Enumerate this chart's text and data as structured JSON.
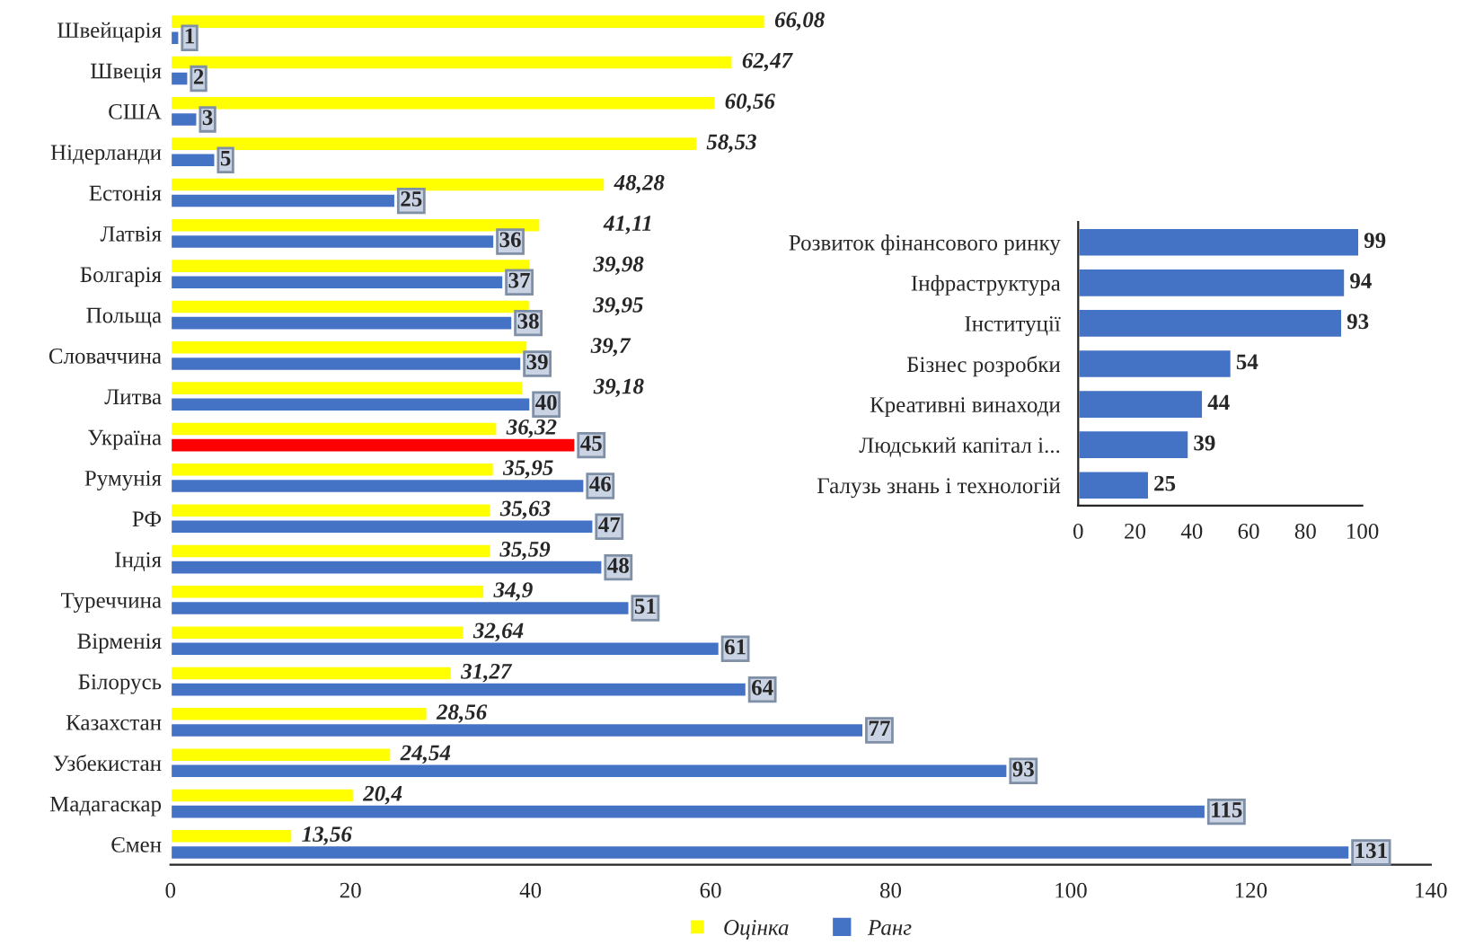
{
  "chart_data": [
    {
      "type": "bar",
      "orientation": "horizontal",
      "categories": [
        "Швейцарія",
        "Швеція",
        "США",
        "Нідерланди",
        "Естонія",
        "Латвія",
        "Болгарія",
        "Польща",
        "Словаччина",
        "Литва",
        "Україна",
        "Румунія",
        "РФ",
        "Індія",
        "Туреччина",
        "Вірменія",
        "Білорусь",
        "Казахстан",
        "Узбекистан",
        "Мадагаскар",
        "Ємен"
      ],
      "series": [
        {
          "name": "Оцінка",
          "color": "#ffff00",
          "values": [
            66.08,
            62.47,
            60.56,
            58.53,
            48.28,
            41.11,
            39.98,
            39.95,
            39.7,
            39.18,
            36.32,
            35.95,
            35.63,
            35.59,
            34.9,
            32.64,
            31.27,
            28.56,
            24.54,
            20.4,
            13.56
          ],
          "value_labels": [
            "66,08",
            "62,47",
            "60,56",
            "58,53",
            "48,28",
            "41,11",
            "39,98",
            "39,95",
            "39,7",
            "39,18",
            "36,32",
            "35,95",
            "35,63",
            "35,59",
            "34,9",
            "32,64",
            "31,27",
            "28,56",
            "24,54",
            "20,4",
            "13,56"
          ]
        },
        {
          "name": "Ранг",
          "color": "#4472c4",
          "colors": [
            "#4472c4",
            "#4472c4",
            "#4472c4",
            "#4472c4",
            "#4472c4",
            "#4472c4",
            "#4472c4",
            "#4472c4",
            "#4472c4",
            "#4472c4",
            "#ff0000",
            "#4472c4",
            "#4472c4",
            "#4472c4",
            "#4472c4",
            "#4472c4",
            "#4472c4",
            "#4472c4",
            "#4472c4",
            "#4472c4",
            "#4472c4"
          ],
          "values": [
            1,
            2,
            3,
            5,
            25,
            36,
            37,
            38,
            39,
            40,
            45,
            46,
            47,
            48,
            51,
            61,
            64,
            77,
            93,
            115,
            131
          ],
          "data_labels": true
        }
      ],
      "xlim": [
        0,
        140
      ],
      "xticks": [
        0,
        20,
        40,
        60,
        80,
        100,
        120,
        140
      ],
      "legend": "bottom",
      "grid": false
    },
    {
      "type": "bar",
      "orientation": "horizontal",
      "categories": [
        "Розвиток фінансового ринку",
        "Інфраструктура",
        "Інституції",
        "Бізнес розробки",
        "Креативні винаходи",
        "Людський капітал і...",
        "Галузь знань і технологій"
      ],
      "series": [
        {
          "color": "#4472c4",
          "values": [
            99,
            94,
            93,
            54,
            44,
            39,
            25
          ]
        }
      ],
      "data_labels": true,
      "xlim": [
        0,
        100
      ],
      "xticks": [
        0,
        20,
        40,
        60,
        80,
        100
      ],
      "grid": false
    }
  ]
}
